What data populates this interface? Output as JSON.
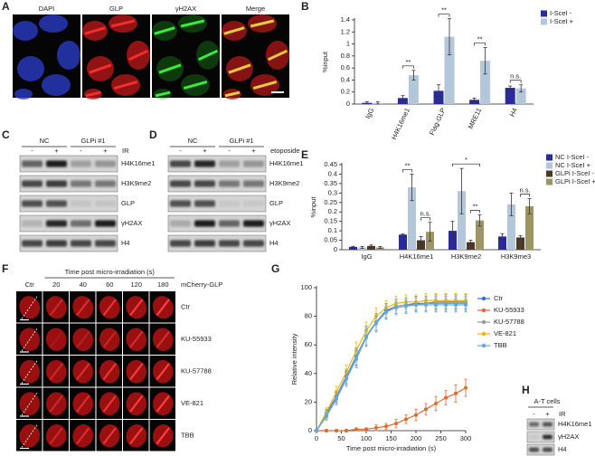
{
  "panel_labels": [
    "A",
    "B",
    "C",
    "D",
    "E",
    "F",
    "G",
    "H"
  ],
  "panel_a": {
    "channels": [
      "DAPI",
      "GLP",
      "γH2AX",
      "Merge"
    ]
  },
  "panel_c": {
    "groups": [
      "NC",
      "GLPi #1"
    ],
    "lanes": [
      "-",
      "+",
      "-",
      "+"
    ],
    "treatment": "IR",
    "bands": [
      "H4K16me1",
      "H3K9me2",
      "GLP",
      "γH2AX",
      "H4"
    ]
  },
  "panel_d": {
    "groups": [
      "NC",
      "GLPi #1"
    ],
    "lanes": [
      "-",
      "+",
      "-",
      "+"
    ],
    "treatment": "etoposide",
    "bands": [
      "H4K16me1",
      "H3K9me2",
      "GLP",
      "γH2AX",
      "H4"
    ]
  },
  "panel_f": {
    "header": "Time post micro-irradiation (s)",
    "columns": [
      "Ctr",
      "20",
      "40",
      "60",
      "120",
      "180"
    ],
    "reporter": "mCherry-GLP",
    "rows": [
      "Ctr",
      "KU-55933",
      "KU-57788",
      "VE-821",
      "TBB"
    ]
  },
  "panel_h": {
    "title": "A-T cells",
    "lanes": [
      "-",
      "+"
    ],
    "treatment": "IR",
    "bands": [
      "H4K16me1",
      "γH2AX",
      "H4"
    ]
  },
  "chart_data": [
    {
      "type": "bar",
      "y_label": "%input",
      "categories": [
        "IgG",
        "H4K16me1",
        "Flag-GLP",
        "MRE11",
        "H4"
      ],
      "series": [
        {
          "name": "I-SceI -",
          "color": "#2a2a9c",
          "values": [
            0.02,
            0.1,
            0.22,
            0.07,
            0.27
          ],
          "errors": [
            0.02,
            0.04,
            0.1,
            0.03,
            0.03
          ]
        },
        {
          "name": "I-SceI +",
          "color": "#b3c6da",
          "values": [
            0.02,
            0.48,
            1.12,
            0.72,
            0.26
          ],
          "errors": [
            0.02,
            0.08,
            0.3,
            0.22,
            0.06
          ]
        }
      ],
      "ylim": [
        0,
        1.4
      ],
      "yticks": [
        0,
        0.2,
        0.4,
        0.6,
        0.8,
        1,
        1.2,
        1.4
      ],
      "annotations": [
        "**",
        "**",
        "**",
        "n.s."
      ],
      "legend": "upper right"
    },
    {
      "type": "bar",
      "y_label": "%input",
      "categories": [
        "IgG",
        "H4K16me1",
        "H3K9me2",
        "H3K9me3"
      ],
      "series": [
        {
          "name": "NC I-SceI -",
          "color": "#2a2a9c",
          "values": [
            0.015,
            0.08,
            0.1,
            0.07
          ],
          "errors": [
            0.003,
            0.003,
            0.05,
            0.015
          ]
        },
        {
          "name": "NC I-SceI +",
          "color": "#b3c6da",
          "values": [
            0.012,
            0.33,
            0.31,
            0.24
          ],
          "errors": [
            0.005,
            0.07,
            0.12,
            0.06
          ]
        },
        {
          "name": "GLPi I-SceI -",
          "color": "#4b3a28",
          "values": [
            0.02,
            0.05,
            0.04,
            0.065
          ],
          "errors": [
            0.005,
            0.02,
            0.01,
            0.01
          ]
        },
        {
          "name": "GLPi I-SceI +",
          "color": "#9d9565",
          "values": [
            0.012,
            0.095,
            0.155,
            0.23
          ],
          "errors": [
            0.005,
            0.05,
            0.03,
            0.04
          ]
        }
      ],
      "ylim": [
        0,
        0.45
      ],
      "yticks": [
        0,
        0.05,
        0.1,
        0.15,
        0.2,
        0.25,
        0.3,
        0.35,
        0.4,
        0.45
      ],
      "annotations": [
        "**",
        "n.s.",
        "*",
        "**",
        "n.s."
      ],
      "legend": "upper right"
    },
    {
      "type": "line",
      "y_label": "Relative intensity",
      "x_label": "Time post micro-irradiation (s)",
      "x": [
        0,
        20,
        40,
        60,
        80,
        100,
        120,
        140,
        160,
        180,
        200,
        220,
        240,
        260,
        280,
        300
      ],
      "series": [
        {
          "name": "Ctr",
          "color": "#3b6fd6",
          "values": [
            0,
            12,
            24,
            38,
            52,
            66,
            76,
            84,
            87,
            88,
            89,
            89,
            90,
            90,
            90,
            90
          ],
          "errors": [
            0,
            3,
            4,
            5,
            6,
            7,
            6,
            5,
            5,
            5,
            5,
            5,
            5,
            5,
            5,
            5
          ]
        },
        {
          "name": "KU-55933",
          "color": "#e0692c",
          "values": [
            0,
            0,
            0,
            0,
            1,
            1,
            2,
            3,
            5,
            8,
            11,
            15,
            19,
            23,
            26,
            30
          ],
          "errors": [
            0,
            1,
            1,
            1,
            1,
            1,
            2,
            2,
            3,
            3,
            4,
            4,
            5,
            5,
            6,
            6
          ]
        },
        {
          "name": "KU-57788",
          "color": "#9a9a9a",
          "values": [
            0,
            10,
            22,
            36,
            50,
            65,
            76,
            83,
            87,
            88,
            88,
            89,
            89,
            89,
            89,
            89
          ],
          "errors": [
            0,
            3,
            4,
            5,
            6,
            6,
            6,
            5,
            5,
            5,
            5,
            5,
            5,
            5,
            5,
            5
          ]
        },
        {
          "name": "VE-821",
          "color": "#f3b400",
          "values": [
            0,
            13,
            27,
            41,
            56,
            70,
            80,
            86,
            89,
            90,
            90,
            91,
            91,
            91,
            91,
            91
          ],
          "errors": [
            0,
            3,
            4,
            5,
            6,
            6,
            6,
            5,
            5,
            5,
            5,
            5,
            5,
            5,
            5,
            5
          ]
        },
        {
          "name": "TBB",
          "color": "#5aaae6",
          "values": [
            0,
            11,
            23,
            37,
            51,
            66,
            75,
            83,
            86,
            87,
            88,
            88,
            88,
            88,
            88,
            88
          ],
          "errors": [
            0,
            3,
            4,
            5,
            6,
            6,
            6,
            5,
            5,
            5,
            5,
            5,
            5,
            5,
            5,
            5
          ]
        }
      ],
      "xlim": [
        0,
        300
      ],
      "xticks": [
        0,
        50,
        100,
        150,
        200,
        250,
        300
      ],
      "ylim": [
        0,
        100
      ],
      "yticks": [
        0,
        20,
        40,
        60,
        80,
        100
      ],
      "legend": "upper right"
    }
  ]
}
